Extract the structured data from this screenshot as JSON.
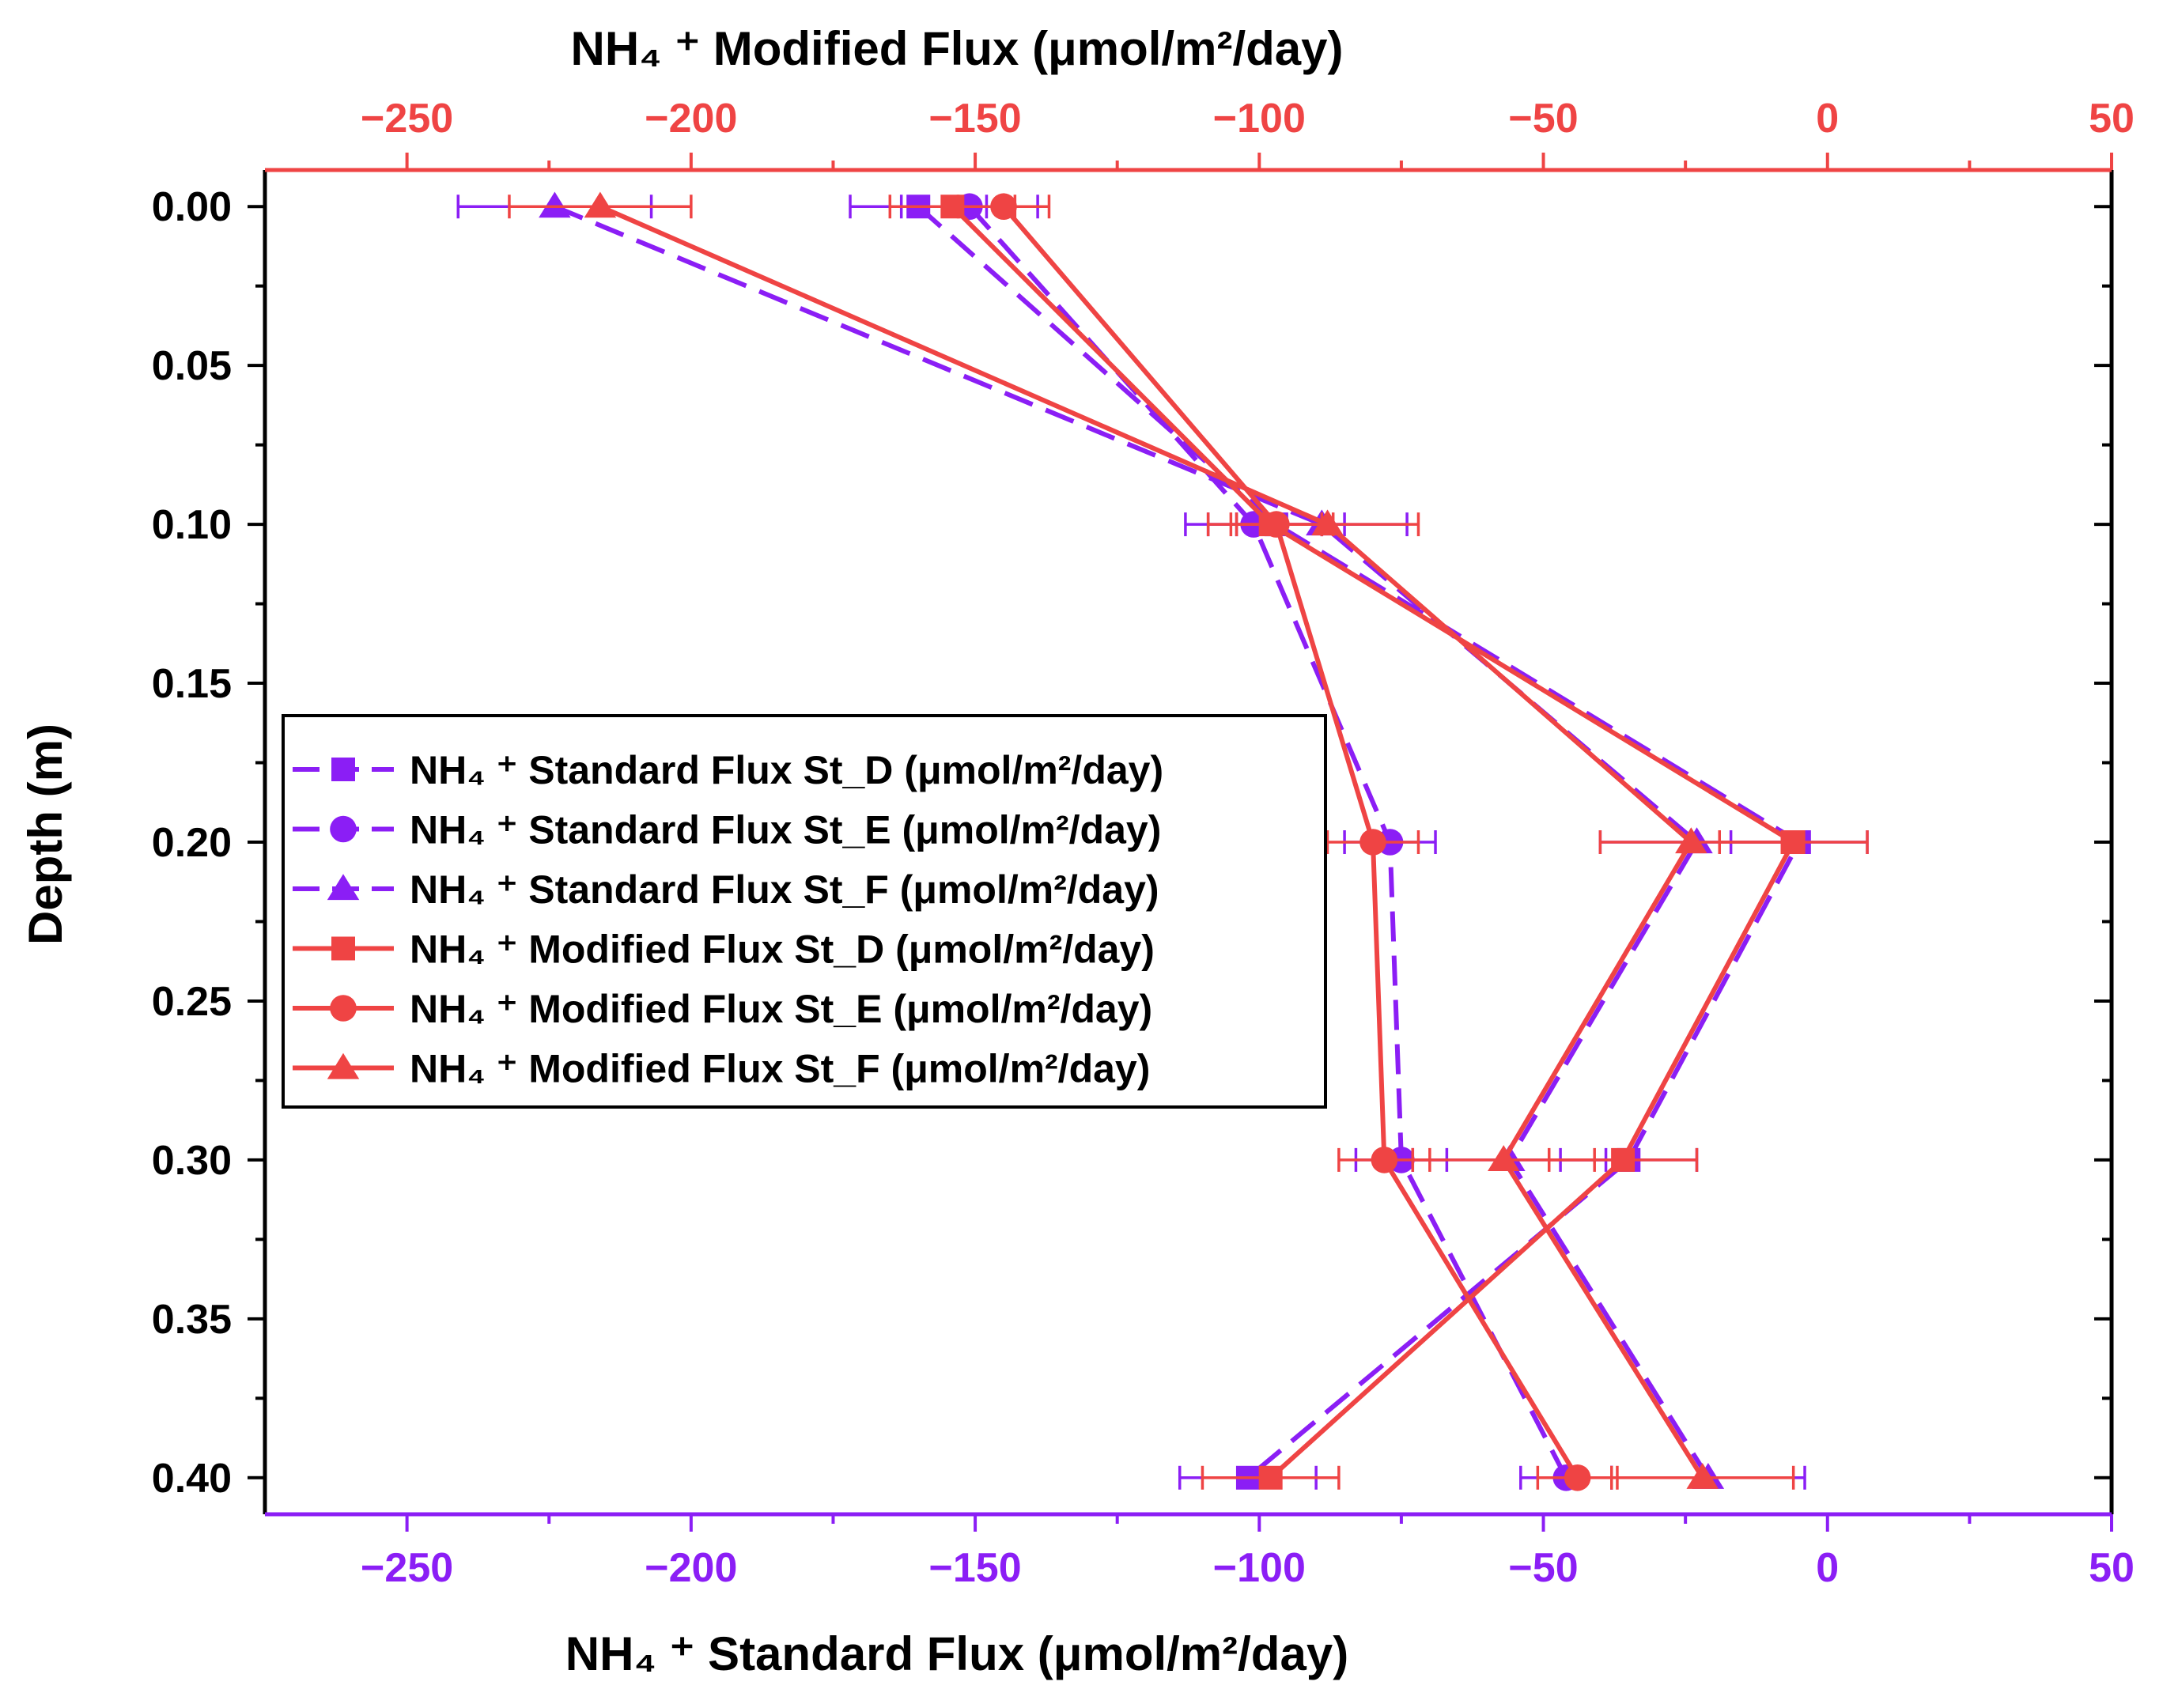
{
  "chart_data": {
    "type": "line",
    "top_axis": {
      "title": "NH₄ ⁺ Modified Flux (μmol/m²/day)",
      "range": [
        -275,
        50
      ],
      "ticks": [
        -250,
        -200,
        -150,
        -100,
        -50,
        0,
        50
      ],
      "tick_labels": [
        "−250",
        "−200",
        "−150",
        "−100",
        "−50",
        "0",
        "50"
      ],
      "color": "#ef4444"
    },
    "bottom_axis": {
      "title": "NH₄ ⁺ Standard Flux (μmol/m²/day)",
      "range": [
        -275,
        50
      ],
      "ticks": [
        -250,
        -200,
        -150,
        -100,
        -50,
        0,
        50
      ],
      "tick_labels": [
        "−250",
        "−200",
        "−150",
        "−100",
        "−50",
        "0",
        "50"
      ],
      "color": "#8b1ef5"
    },
    "y_axis": {
      "title": "Depth (m)",
      "range": [
        0.4115,
        -0.0115
      ],
      "ticks": [
        0.0,
        0.05,
        0.1,
        0.15,
        0.2,
        0.25,
        0.3,
        0.35,
        0.4
      ],
      "tick_labels": [
        "0.00",
        "0.05",
        "0.10",
        "0.15",
        "0.20",
        "0.25",
        "0.30",
        "0.35",
        "0.40"
      ]
    },
    "depths": [
      0.0,
      0.1,
      0.2,
      0.3,
      0.4
    ],
    "legend_position": "middle-left",
    "series": [
      {
        "name": "NH₄ ⁺ Standard Flux St_D (μmol/m²/day)",
        "axis": "bottom",
        "marker": "square",
        "dash": true,
        "color": "#8b1ef5",
        "x": [
          -160,
          -97,
          -5,
          -35,
          -102
        ],
        "err": [
          12,
          12,
          12,
          12,
          12
        ]
      },
      {
        "name": "NH₄ ⁺ Standard Flux St_E (μmol/m²/day)",
        "axis": "bottom",
        "marker": "circle",
        "dash": true,
        "color": "#8b1ef5",
        "x": [
          -151,
          -101,
          -77,
          -75,
          -46
        ],
        "err": [
          12,
          12,
          8,
          8,
          8
        ]
      },
      {
        "name": "NH₄ ⁺ Standard Flux St_F (μmol/m²/day)",
        "axis": "bottom",
        "marker": "triangle",
        "dash": true,
        "color": "#8b1ef5",
        "x": [
          -224,
          -89,
          -23,
          -56,
          -21
        ],
        "err": [
          17,
          15,
          17,
          17,
          17
        ]
      },
      {
        "name": "NH₄ ⁺ Modified Flux St_D (μmol/m²/day)",
        "axis": "top",
        "marker": "square",
        "dash": false,
        "color": "#ef4444",
        "x": [
          -154,
          -98,
          -6,
          -36,
          -98
        ],
        "err": [
          11,
          11,
          13,
          13,
          12
        ]
      },
      {
        "name": "NH₄ ⁺ Modified Flux St_E (μmol/m²/day)",
        "axis": "top",
        "marker": "circle",
        "dash": false,
        "color": "#ef4444",
        "x": [
          -145,
          -97,
          -80,
          -78,
          -44
        ],
        "err": [
          8,
          8,
          8,
          8,
          7
        ]
      },
      {
        "name": "NH₄ ⁺ Modified Flux St_F (μmol/m²/day)",
        "axis": "top",
        "marker": "triangle",
        "dash": false,
        "color": "#ef4444",
        "x": [
          -216,
          -88,
          -24,
          -57,
          -22
        ],
        "err": [
          16,
          16,
          16,
          16,
          16
        ]
      }
    ]
  }
}
